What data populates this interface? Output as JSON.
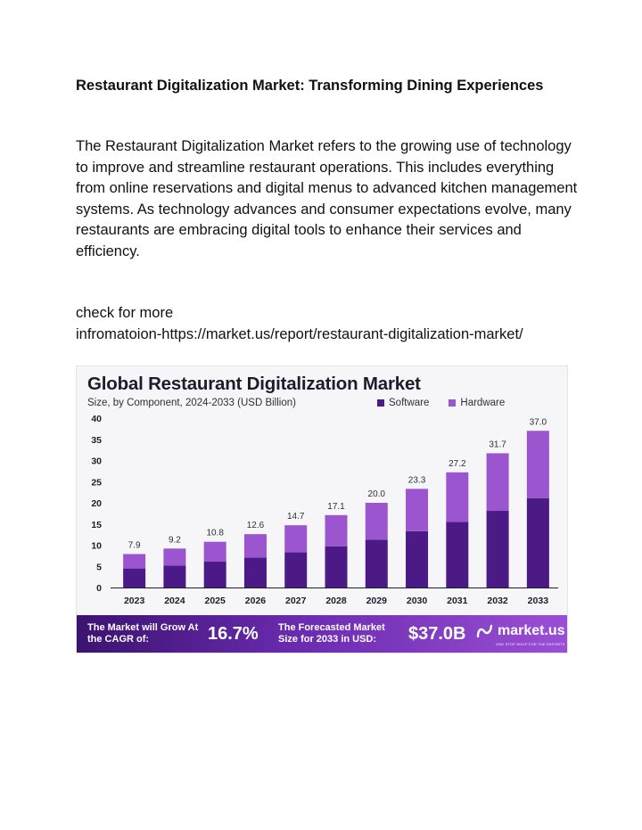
{
  "document": {
    "title": "Restaurant Digitalization Market: Transforming Dining Experiences",
    "body": "The Restaurant Digitalization Market refers to the growing use of technology to improve and streamline restaurant operations. This includes everything from online reservations and digital menus to advanced kitchen management systems. As technology advances and consumer expectations evolve, many restaurants are embracing digital tools to enhance their services and efficiency.",
    "more_line1": "check for more",
    "more_line2": "infromatoion-https://market.us/report/restaurant-digitalization-market/"
  },
  "infographic": {
    "title": "Global Restaurant Digitalization Market",
    "subtitle": "Size, by Component, 2024-2033 (USD Billion)",
    "legend": {
      "software": "Software",
      "hardware": "Hardware"
    },
    "colors": {
      "software": "#4b1a86",
      "hardware": "#9a55cf"
    },
    "banner": {
      "cagr_label": "The Market will Grow At the CAGR of:",
      "cagr_value": "16.7%",
      "forecast_label": "The Forecasted Market Size for 2033 in USD:",
      "forecast_value": "$37.0B",
      "brand": "market.us",
      "tagline": "ONE STOP SHOP FOR THE REPORTS"
    }
  },
  "chart_data": {
    "type": "bar",
    "stacked": true,
    "categories": [
      "2023",
      "2024",
      "2025",
      "2026",
      "2027",
      "2028",
      "2029",
      "2030",
      "2031",
      "2032",
      "2033"
    ],
    "totals": [
      7.9,
      9.2,
      10.8,
      12.6,
      14.7,
      17.1,
      20.0,
      23.3,
      27.2,
      31.7,
      37.0
    ],
    "total_labels": [
      "7.9",
      "9.2",
      "10.8",
      "12.6",
      "14.7",
      "17.1",
      "20.0",
      "23.3",
      "27.2",
      "31.7",
      "37.0"
    ],
    "series": [
      {
        "name": "Software",
        "values": [
          4.5,
          5.2,
          6.1,
          7.1,
          8.3,
          9.7,
          11.3,
          13.3,
          15.5,
          18.1,
          21.1
        ]
      },
      {
        "name": "Hardware",
        "values": [
          3.4,
          4.0,
          4.7,
          5.5,
          6.4,
          7.4,
          8.7,
          10.0,
          11.7,
          13.6,
          15.9
        ]
      }
    ],
    "yticks": [
      "0",
      "5",
      "10",
      "15",
      "20",
      "25",
      "30",
      "35",
      "40"
    ],
    "ylim": [
      0,
      40
    ]
  }
}
